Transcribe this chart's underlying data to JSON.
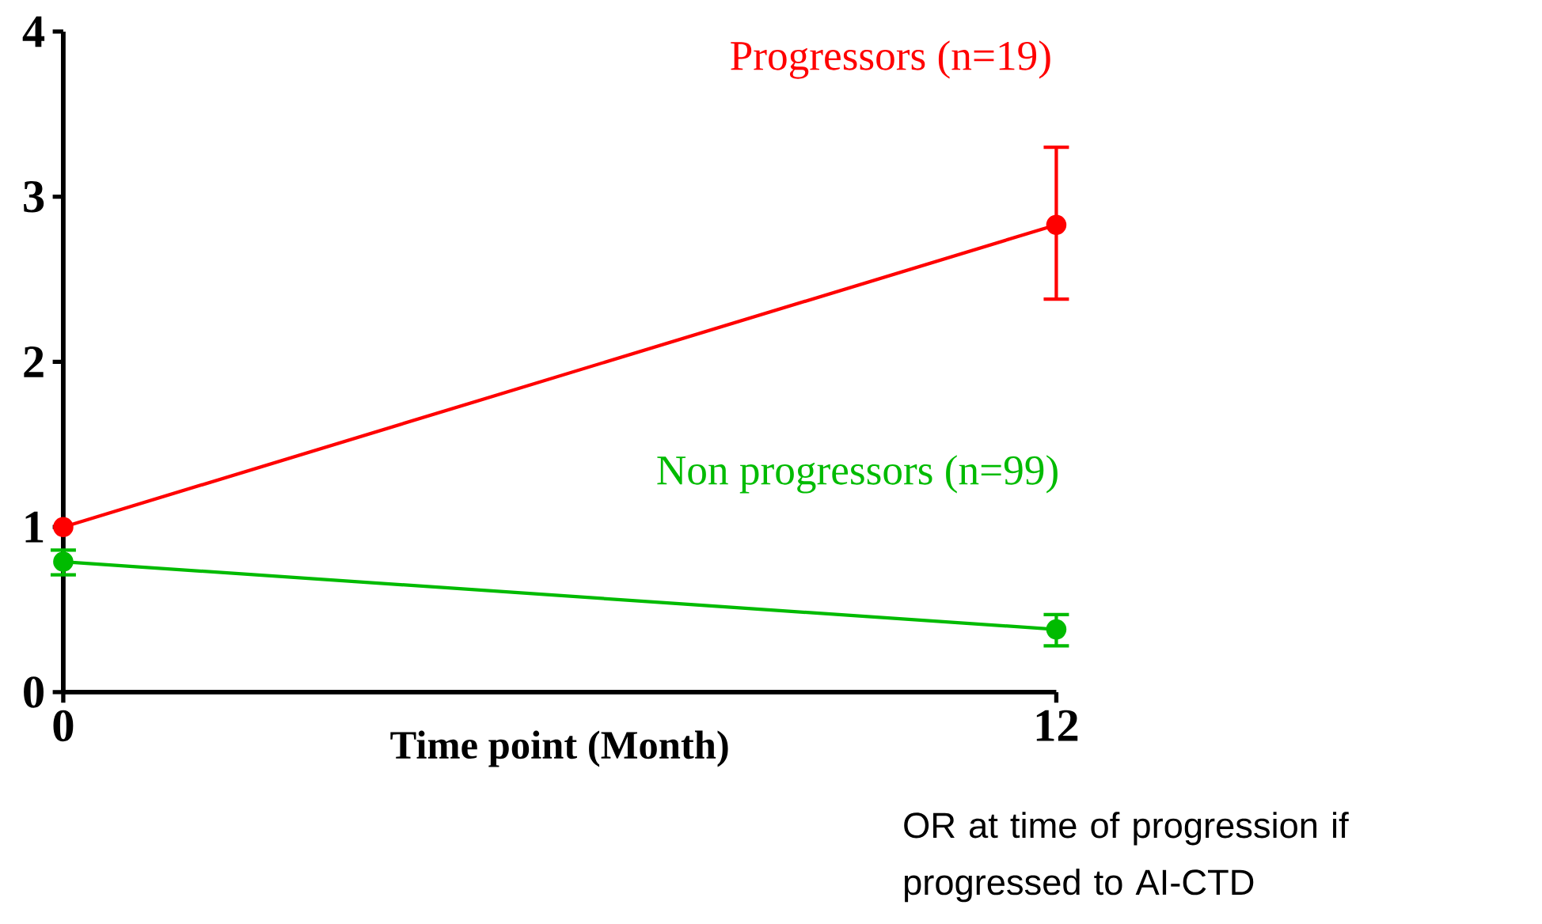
{
  "chart_data": {
    "type": "line",
    "xlabel": "Time point (Month)",
    "x": [
      0,
      12
    ],
    "xlim": [
      0,
      12
    ],
    "xticks": [
      0,
      12
    ],
    "ylim": [
      0,
      4
    ],
    "yticks": [
      0,
      1,
      2,
      3,
      4
    ],
    "marker": "circle",
    "line_style": "solid",
    "grid": false,
    "legend": false,
    "series": [
      {
        "name": "Progressors (n=19)",
        "color": "#ff0000",
        "values": [
          1.0,
          2.83
        ],
        "errors": [
          null,
          [
            2.38,
            3.3
          ]
        ]
      },
      {
        "name": "Non progressors (n=99)",
        "color": "#00bb00",
        "values": [
          0.79,
          0.38
        ],
        "errors": [
          [
            0.71,
            0.86
          ],
          [
            0.28,
            0.47
          ]
        ]
      }
    ],
    "annotations": [
      "OR at time of progression if progressed to AI-CTD"
    ]
  }
}
